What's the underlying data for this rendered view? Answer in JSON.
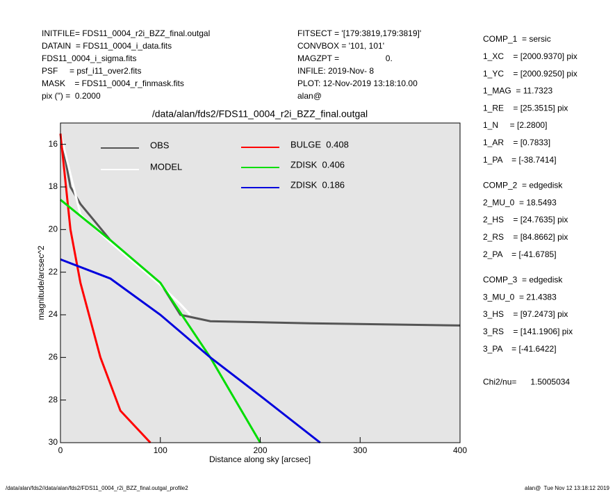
{
  "header": {
    "left": [
      "INITFILE= FDS11_0004_r2i_BZZ_final.outgal",
      "DATAIN  = FDS11_0004_i_data.fits",
      "FDS11_0004_i_sigma.fits",
      "PSF     = psf_i11_over2.fits",
      "MASK    = FDS11_0004_r_finmask.fits",
      "pix (\") =  0.2000"
    ],
    "middle": [
      "FITSECT = '[179:3819,179:3819]'",
      "CONVBOX = '101, 101'",
      "MAGZPT =                    0.",
      "INFILE: 2019-Nov- 8",
      "PLOT: 12-Nov-2019 13:18:10.00",
      "alan@"
    ]
  },
  "right_panel": [
    [
      "COMP_1  = sersic",
      "1_XC    = [2000.9370] pix",
      "1_YC    = [2000.9250] pix",
      "1_MAG  = 11.7323",
      "1_RE    = [25.3515] pix",
      "1_N     = [2.2800]",
      "1_AR    = [0.7833]",
      "1_PA    = [-38.7414]"
    ],
    [
      "COMP_2  = edgedisk",
      "2_MU_0  = 18.5493",
      "2_HS    = [24.7635] pix",
      "2_RS    = [84.8662] pix",
      "2_PA    = [-41.6785]"
    ],
    [
      "COMP_3  = edgedisk",
      "3_MU_0  = 21.4383",
      "3_HS    = [97.2473] pix",
      "3_RS    = [141.1906] pix",
      "3_PA    = [-41.6422]"
    ],
    [
      "Chi2/nu=      1.5005034"
    ]
  ],
  "footer": {
    "left": "/data/alan/fds2//data/alan/fds2/FDS11_0004_r2i_BZZ_final.outgal_profile2",
    "right": "alan@  Tue Nov 12 13:18:12 2019"
  },
  "chart_data": {
    "type": "line",
    "title": "/data/alan/fds2/FDS11_0004_r2i_BZZ_final.outgal",
    "x_label": "Distance along sky [arcsec]",
    "y_label": "magnitude/arcsec^2",
    "xlim": [
      0,
      400
    ],
    "ylim": [
      30,
      15
    ],
    "xticks": [
      0,
      100,
      200,
      300,
      400
    ],
    "yticks": [
      16,
      18,
      20,
      22,
      24,
      26,
      28,
      30
    ],
    "series": [
      {
        "name": "OBS",
        "color": "#555555",
        "x": [
          0,
          10,
          20,
          50,
          100,
          120,
          150,
          250,
          400
        ],
        "values": [
          15.5,
          18,
          18.8,
          20.5,
          22.5,
          24,
          24.3,
          24.4,
          24.5
        ]
      },
      {
        "name": "MODEL",
        "color": "#ffffff",
        "x": [
          0,
          20,
          50,
          100,
          120,
          130
        ],
        "values": [
          15.5,
          19.3,
          20.6,
          22.6,
          23.5,
          24
        ]
      },
      {
        "name": "BULGE  0.408",
        "color": "#ff0000",
        "x": [
          0,
          10,
          20,
          40,
          60,
          90
        ],
        "values": [
          15.5,
          20,
          22.5,
          26,
          28.5,
          30
        ]
      },
      {
        "name": "ZDISK  0.406",
        "color": "#00dd00",
        "x": [
          0,
          50,
          100,
          150,
          200
        ],
        "values": [
          18.6,
          20.5,
          22.5,
          26,
          30
        ]
      },
      {
        "name": "ZDISK  0.186",
        "color": "#0000dd",
        "x": [
          0,
          50,
          100,
          150,
          200,
          260
        ],
        "values": [
          21.4,
          22.3,
          24,
          26,
          27.8,
          30
        ]
      }
    ]
  }
}
